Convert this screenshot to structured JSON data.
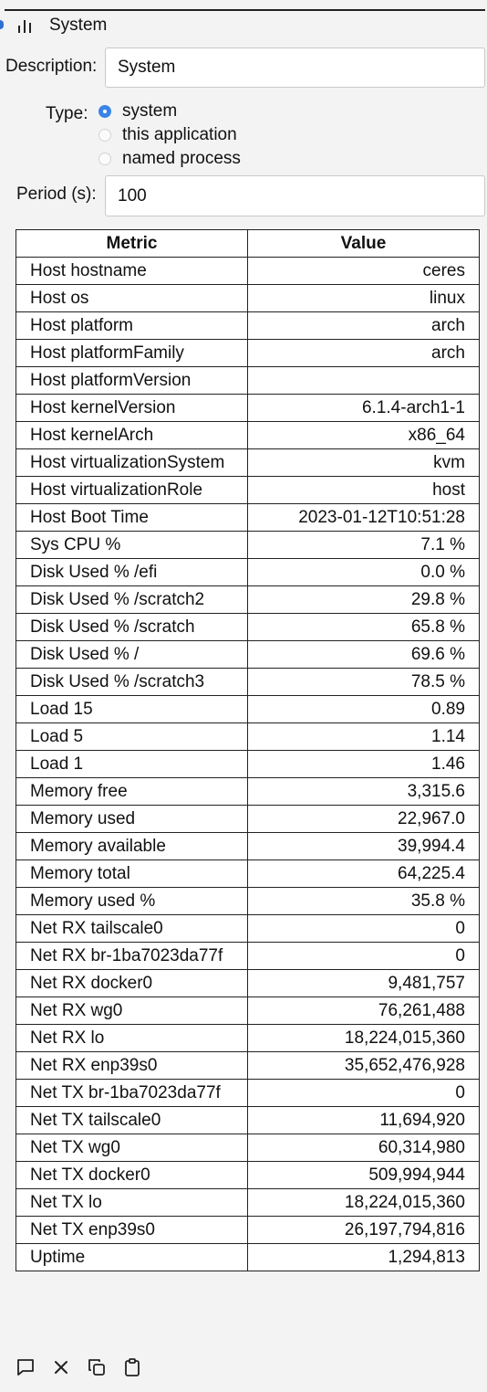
{
  "header": {
    "title": "System",
    "icon": "bar-chart-icon"
  },
  "form": {
    "description_label": "Description:",
    "description_value": "System",
    "type_label": "Type:",
    "type_options": [
      {
        "label": "system",
        "checked": true
      },
      {
        "label": "this application",
        "checked": false
      },
      {
        "label": "named process",
        "checked": false
      }
    ],
    "period_label": "Period (s):",
    "period_value": "100"
  },
  "table": {
    "headers": [
      "Metric",
      "Value"
    ],
    "rows": [
      {
        "metric": "Host hostname",
        "value": "ceres"
      },
      {
        "metric": "Host os",
        "value": "linux"
      },
      {
        "metric": "Host platform",
        "value": "arch"
      },
      {
        "metric": "Host platformFamily",
        "value": "arch"
      },
      {
        "metric": "Host platformVersion",
        "value": ""
      },
      {
        "metric": "Host kernelVersion",
        "value": "6.1.4-arch1-1"
      },
      {
        "metric": "Host kernelArch",
        "value": "x86_64"
      },
      {
        "metric": "Host virtualizationSystem",
        "value": "kvm"
      },
      {
        "metric": "Host virtualizationRole",
        "value": "host"
      },
      {
        "metric": "Host Boot Time",
        "value": "2023-01-12T10:51:28"
      },
      {
        "metric": "Sys CPU %",
        "value": "7.1 %"
      },
      {
        "metric": "Disk Used % /efi",
        "value": "0.0 %"
      },
      {
        "metric": "Disk Used % /scratch2",
        "value": "29.8 %"
      },
      {
        "metric": "Disk Used % /scratch",
        "value": "65.8 %"
      },
      {
        "metric": "Disk Used % /",
        "value": "69.6 %"
      },
      {
        "metric": "Disk Used % /scratch3",
        "value": "78.5 %"
      },
      {
        "metric": "Load 15",
        "value": "0.89"
      },
      {
        "metric": "Load 5",
        "value": "1.14"
      },
      {
        "metric": "Load 1",
        "value": "1.46"
      },
      {
        "metric": "Memory free",
        "value": "3,315.6"
      },
      {
        "metric": "Memory used",
        "value": "22,967.0"
      },
      {
        "metric": "Memory available",
        "value": "39,994.4"
      },
      {
        "metric": "Memory total",
        "value": "64,225.4"
      },
      {
        "metric": "Memory used %",
        "value": "35.8 %"
      },
      {
        "metric": "Net RX tailscale0",
        "value": "0"
      },
      {
        "metric": "Net RX br-1ba7023da77f",
        "value": "0"
      },
      {
        "metric": "Net RX docker0",
        "value": "9,481,757"
      },
      {
        "metric": "Net RX wg0",
        "value": "76,261,488"
      },
      {
        "metric": "Net RX lo",
        "value": "18,224,015,360"
      },
      {
        "metric": "Net RX enp39s0",
        "value": "35,652,476,928"
      },
      {
        "metric": "Net TX br-1ba7023da77f",
        "value": "0"
      },
      {
        "metric": "Net TX tailscale0",
        "value": "11,694,920"
      },
      {
        "metric": "Net TX wg0",
        "value": "60,314,980"
      },
      {
        "metric": "Net TX docker0",
        "value": "509,994,944"
      },
      {
        "metric": "Net TX lo",
        "value": "18,224,015,360"
      },
      {
        "metric": "Net TX enp39s0",
        "value": "26,197,794,816"
      },
      {
        "metric": "Uptime",
        "value": "1,294,813"
      }
    ]
  },
  "toolbar": {
    "icons": [
      "comment-icon",
      "close-icon",
      "copy-icon",
      "paste-icon"
    ]
  },
  "colors": {
    "accent": "#3a84e6",
    "background": "#f3f3f3"
  }
}
